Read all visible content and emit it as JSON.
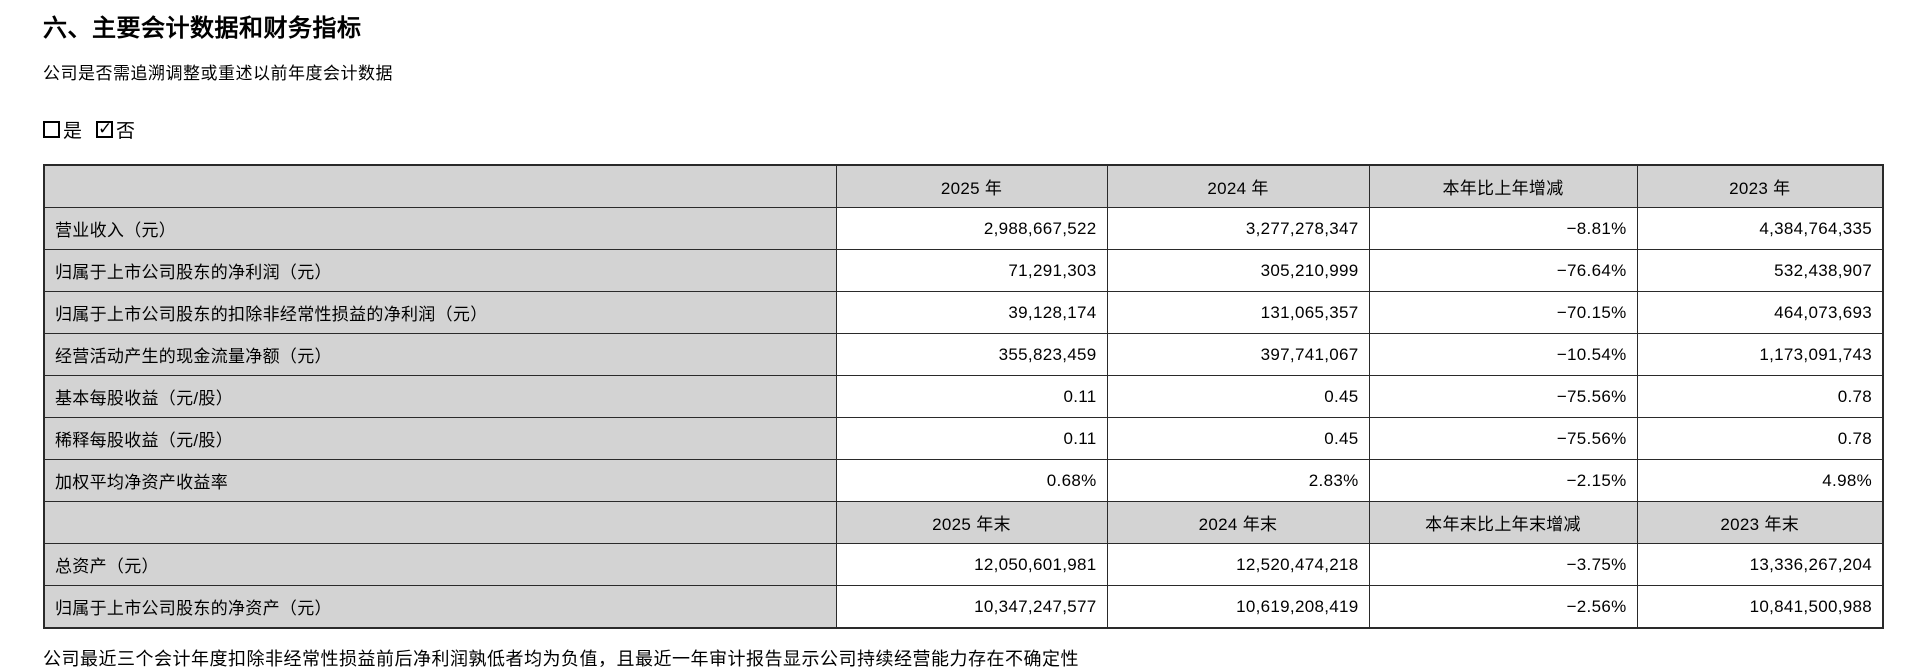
{
  "page": {
    "title": "六、主要会计数据和财务指标",
    "question": "公司是否需追溯调整或重述以前年度会计数据",
    "footnote": "公司最近三个会计年度扣除非经常性损益前后净利润孰低者均为负值，且最近一年审计报告显示公司持续经营能力存在不确定性"
  },
  "options": {
    "yes": {
      "label": "是",
      "checked": false
    },
    "no": {
      "label": "否",
      "checked": true
    }
  },
  "colors": {
    "header_bg": "#d3d3d3",
    "border": "#2a2a2a",
    "text": "#000000"
  },
  "table": {
    "annual_header": [
      "2025 年",
      "2024 年",
      "本年比上年增减",
      "2023 年"
    ],
    "rows_annual": [
      {
        "label": "营业收入（元）",
        "values": [
          "2,988,667,522",
          "3,277,278,347",
          "−8.81%",
          "4,384,764,335"
        ]
      },
      {
        "label": "归属于上市公司股东的净利润（元）",
        "values": [
          "71,291,303",
          "305,210,999",
          "−76.64%",
          "532,438,907"
        ]
      },
      {
        "label": "归属于上市公司股东的扣除非经常性损益的净利润（元）",
        "values": [
          "39,128,174",
          "131,065,357",
          "−70.15%",
          "464,073,693"
        ]
      },
      {
        "label": "经营活动产生的现金流量净额（元）",
        "values": [
          "355,823,459",
          "397,741,067",
          "−10.54%",
          "1,173,091,743"
        ]
      },
      {
        "label": "基本每股收益（元/股）",
        "values": [
          "0.11",
          "0.45",
          "−75.56%",
          "0.78"
        ]
      },
      {
        "label": "稀释每股收益（元/股）",
        "values": [
          "0.11",
          "0.45",
          "−75.56%",
          "0.78"
        ]
      },
      {
        "label": "加权平均净资产收益率",
        "values": [
          "0.68%",
          "2.83%",
          "−2.15%",
          "4.98%"
        ]
      }
    ],
    "period_end_header": [
      "2025 年末",
      "2024 年末",
      "本年末比上年末增减",
      "2023 年末"
    ],
    "rows_period_end": [
      {
        "label": "总资产（元）",
        "values": [
          "12,050,601,981",
          "12,520,474,218",
          "−3.75%",
          "13,336,267,204"
        ]
      },
      {
        "label": "归属于上市公司股东的净资产（元）",
        "values": [
          "10,347,247,577",
          "10,619,208,419",
          "−2.56%",
          "10,841,500,988"
        ]
      }
    ]
  }
}
